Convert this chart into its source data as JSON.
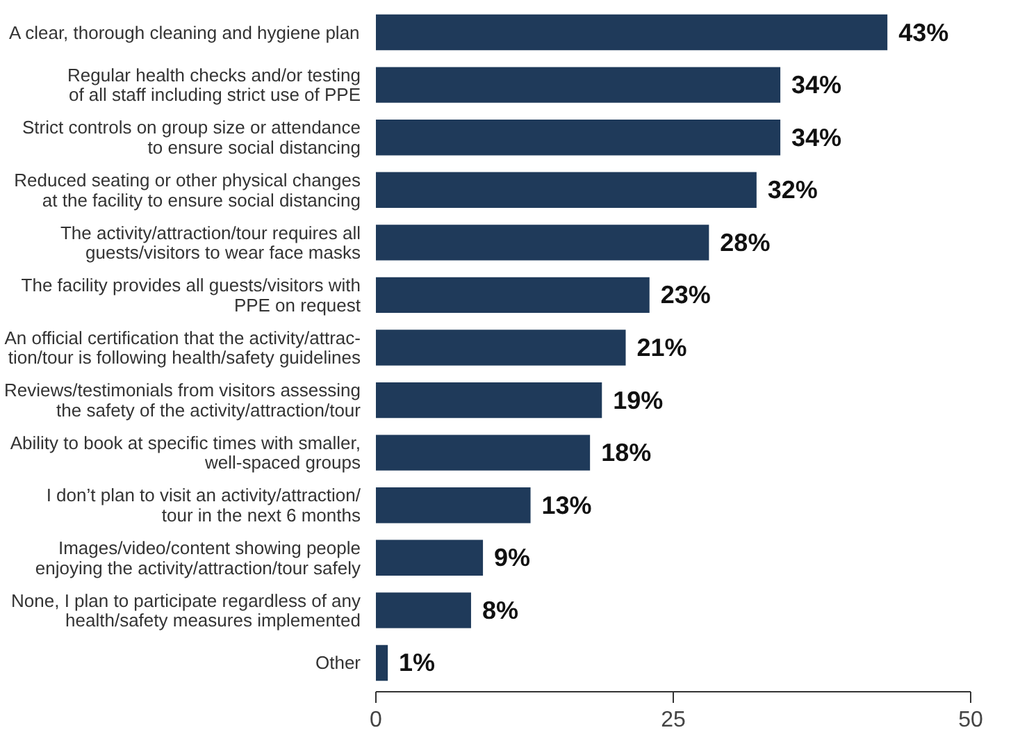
{
  "chart_data": {
    "type": "bar",
    "orientation": "horizontal",
    "categories": [
      "A clear, thorough cleaning and hygiene plan",
      "Regular health checks and/or testing\nof all staff including strict use of PPE",
      "Strict controls on group size or attendance\nto ensure social distancing",
      "Reduced seating or other physical changes\nat the facility to ensure social distancing",
      "The activity/attraction/tour requires all\nguests/visitors to wear face masks",
      "The facility provides all guests/visitors with\nPPE on request",
      "An official certification that the activity/attrac-\ntion/tour is following health/safety guidelines",
      "Reviews/testimonials from visitors assessing\nthe safety of the activity/attraction/tour",
      "Ability to book at specific times with smaller,\nwell-spaced groups",
      "I don’t plan to visit an activity/attraction/\ntour in the next 6 months",
      "Images/video/content showing people\nenjoying the activity/attraction/tour safely",
      "None, I plan to participate regardless of any\nhealth/safety measures implemented",
      "Other"
    ],
    "values": [
      43,
      34,
      34,
      32,
      28,
      23,
      21,
      19,
      18,
      13,
      9,
      8,
      1
    ],
    "value_labels": [
      "43%",
      "34%",
      "34%",
      "32%",
      "28%",
      "23%",
      "21%",
      "19%",
      "18%",
      "13%",
      "9%",
      "8%",
      "1%"
    ],
    "color": "#1f3a5a",
    "xlim": [
      0,
      50
    ],
    "xticks": [
      0,
      25,
      50
    ],
    "grid": false
  }
}
